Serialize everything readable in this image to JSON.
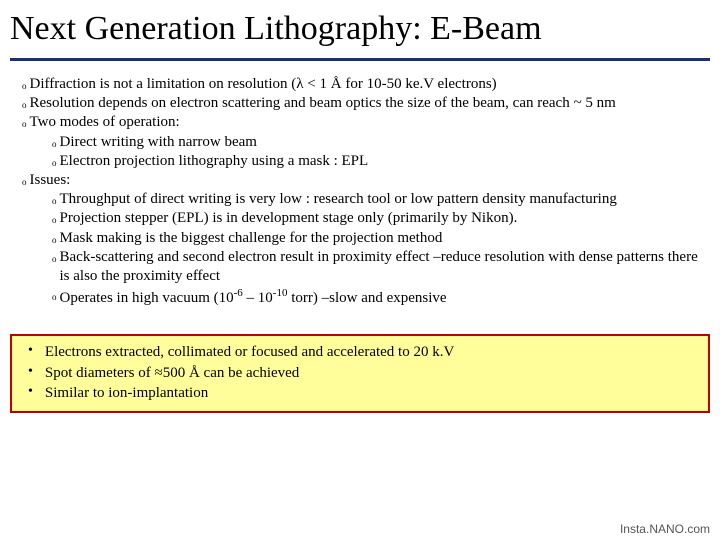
{
  "title": "Next Generation Lithography: E-Beam",
  "bullets": {
    "b1": "Diffraction is not a limitation on resolution (λ < 1 Å for 10-50 ke.V electrons)",
    "b2": "Resolution depends on electron scattering and beam optics the size of the beam, can reach ~ 5 nm",
    "b3": "Two modes of operation:",
    "b3a": "Direct writing with narrow beam",
    "b3b": "Electron projection lithography using a mask : EPL",
    "b4": "Issues:",
    "b4a": "Throughput of direct writing is very low : research tool  or low pattern density manufacturing",
    "b4b": "Projection stepper (EPL) is in development stage only (primarily by Nikon).",
    "b4c": "Mask making is the biggest challenge for the projection method",
    "b4d": "Back-scattering and second electron result in proximity  effect –reduce resolution with dense patterns there is also the proximity effect",
    "b4e_pre": "Operates in high vacuum (10",
    "b4e_exp1": "-6",
    "b4e_mid": " – 10",
    "b4e_exp2": "-10",
    "b4e_post": " torr) –slow and expensive"
  },
  "highlight": {
    "h1": "Electrons extracted, collimated or focused and accelerated to 20 k.V",
    "h2": "Spot diameters of ≈500 Å can be achieved",
    "h3": "Similar to ion-implantation"
  },
  "footer": "Insta.NANO.com",
  "colors": {
    "rule": "#1b2f7a",
    "highlight_bg": "#fffe9a",
    "highlight_border": "#c00000"
  }
}
